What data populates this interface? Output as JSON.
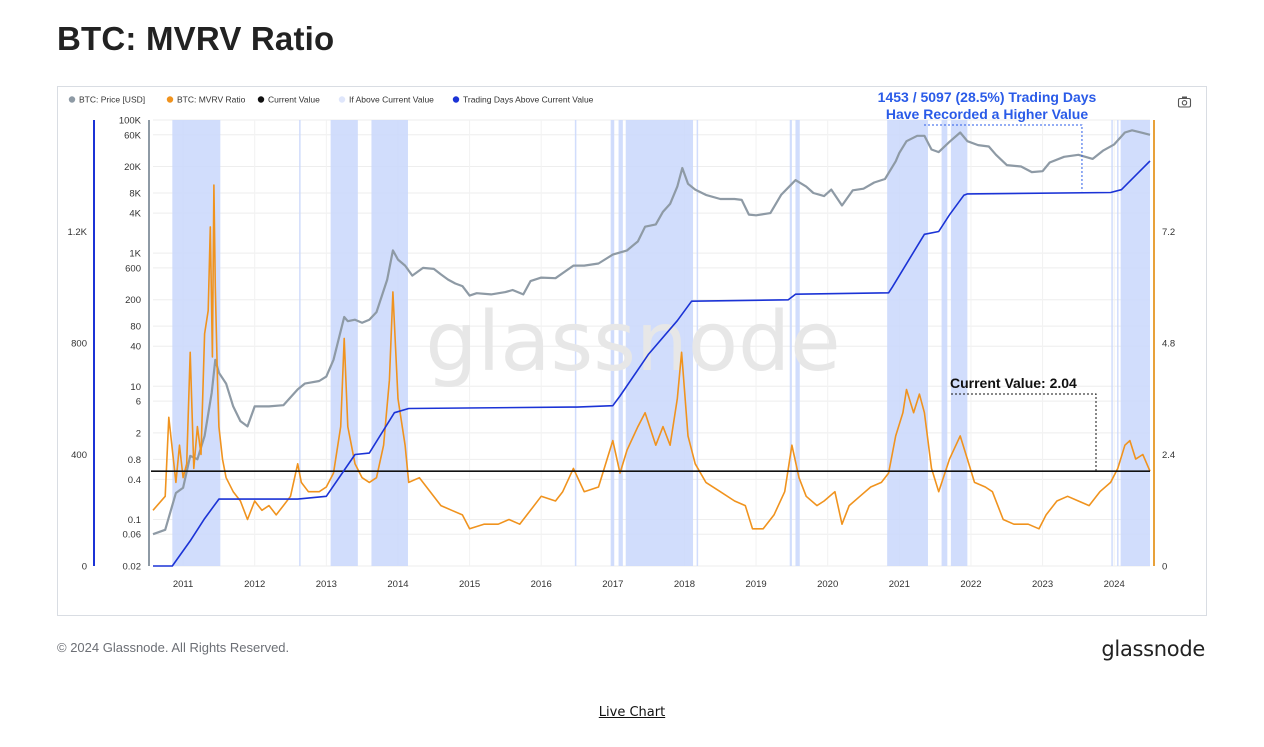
{
  "page": {
    "title": "BTC: MVRV Ratio",
    "copyright": "© 2024 Glassnode. All Rights Reserved.",
    "logo_text": "glassnode",
    "watermark": "glassnode",
    "live_chart_link": "Live Chart"
  },
  "colors": {
    "price": "#8e9aa5",
    "mvrv": "#f0931e",
    "current_value": "#111111",
    "above_fill": "#c9d7fb",
    "trading_days": "#1b33d6",
    "annotation_blue": "#2a5be8",
    "right_axis": "#e8a13a"
  },
  "icons": {
    "camera": "camera-icon"
  },
  "chart_data": {
    "type": "line",
    "legend": [
      {
        "label": "BTC: Price [USD]",
        "color": "#8e9aa5",
        "marker": "dot"
      },
      {
        "label": "BTC: MVRV Ratio",
        "color": "#f0931e",
        "marker": "dot"
      },
      {
        "label": "Current Value",
        "color": "#111111",
        "marker": "dot"
      },
      {
        "label": "If Above Current Value",
        "color": "#dfe6fb",
        "marker": "dot"
      },
      {
        "label": "Trading Days Above Current Value",
        "color": "#1b33d6",
        "marker": "dot"
      }
    ],
    "legend_position": "top-left",
    "annotation_days": {
      "line1": "1453 / 5097 (28.5%) Trading Days",
      "line2": "Have Recorded a Higher Value"
    },
    "annotation_current": "Current Value: 2.04",
    "x_ticks": [
      "2011",
      "2012",
      "2013",
      "2014",
      "2015",
      "2016",
      "2017",
      "2018",
      "2019",
      "2020",
      "2021",
      "2022",
      "2023",
      "2024"
    ],
    "x_range": [
      2010.58,
      2024.5
    ],
    "left_axis_ticks": [
      "0",
      "400",
      "800",
      "1.2K"
    ],
    "left_axis_range": [
      0,
      1600
    ],
    "price_axis_ticks": [
      "100K",
      "60K",
      "20K",
      "8K",
      "4K",
      "1K",
      "600",
      "200",
      "80",
      "40",
      "10",
      "6",
      "2",
      "0.8",
      "0.4",
      "0.1",
      "0.06",
      "0.02"
    ],
    "price_axis_scale": "log",
    "price_axis_range": [
      0.02,
      100000
    ],
    "right_axis_ticks": [
      "0",
      "2.4",
      "4.8",
      "7.2"
    ],
    "right_axis_range": [
      0,
      9.6
    ],
    "current_value": 2.04,
    "price_series": [
      [
        2010.58,
        0.06
      ],
      [
        2010.75,
        0.07
      ],
      [
        2010.9,
        0.25
      ],
      [
        2011.0,
        0.3
      ],
      [
        2011.1,
        0.9
      ],
      [
        2011.2,
        0.8
      ],
      [
        2011.3,
        1.8
      ],
      [
        2011.4,
        8
      ],
      [
        2011.45,
        25
      ],
      [
        2011.5,
        16
      ],
      [
        2011.6,
        11
      ],
      [
        2011.7,
        5
      ],
      [
        2011.8,
        3
      ],
      [
        2011.9,
        2.5
      ],
      [
        2012.0,
        5
      ],
      [
        2012.2,
        5
      ],
      [
        2012.4,
        5.2
      ],
      [
        2012.6,
        9
      ],
      [
        2012.7,
        11
      ],
      [
        2012.9,
        12
      ],
      [
        2013.0,
        14
      ],
      [
        2013.1,
        25
      ],
      [
        2013.25,
        110
      ],
      [
        2013.3,
        95
      ],
      [
        2013.4,
        100
      ],
      [
        2013.5,
        90
      ],
      [
        2013.6,
        100
      ],
      [
        2013.7,
        130
      ],
      [
        2013.85,
        400
      ],
      [
        2013.93,
        1100
      ],
      [
        2014.0,
        800
      ],
      [
        2014.1,
        650
      ],
      [
        2014.2,
        460
      ],
      [
        2014.35,
        600
      ],
      [
        2014.5,
        580
      ],
      [
        2014.6,
        480
      ],
      [
        2014.7,
        400
      ],
      [
        2014.8,
        350
      ],
      [
        2014.9,
        320
      ],
      [
        2015.0,
        230
      ],
      [
        2015.1,
        250
      ],
      [
        2015.3,
        240
      ],
      [
        2015.5,
        260
      ],
      [
        2015.6,
        280
      ],
      [
        2015.75,
        240
      ],
      [
        2015.85,
        380
      ],
      [
        2016.0,
        430
      ],
      [
        2016.2,
        420
      ],
      [
        2016.45,
        650
      ],
      [
        2016.6,
        650
      ],
      [
        2016.8,
        700
      ],
      [
        2017.0,
        950
      ],
      [
        2017.2,
        1100
      ],
      [
        2017.35,
        1500
      ],
      [
        2017.45,
        2500
      ],
      [
        2017.6,
        2700
      ],
      [
        2017.7,
        4200
      ],
      [
        2017.8,
        5500
      ],
      [
        2017.9,
        10000
      ],
      [
        2017.97,
        19000
      ],
      [
        2018.05,
        11000
      ],
      [
        2018.15,
        9000
      ],
      [
        2018.3,
        7500
      ],
      [
        2018.5,
        6500
      ],
      [
        2018.7,
        6500
      ],
      [
        2018.8,
        6300
      ],
      [
        2018.9,
        3800
      ],
      [
        2019.0,
        3700
      ],
      [
        2019.2,
        4000
      ],
      [
        2019.35,
        7500
      ],
      [
        2019.5,
        11000
      ],
      [
        2019.55,
        12500
      ],
      [
        2019.7,
        10000
      ],
      [
        2019.8,
        8000
      ],
      [
        2019.95,
        7200
      ],
      [
        2020.05,
        9000
      ],
      [
        2020.2,
        5200
      ],
      [
        2020.35,
        8800
      ],
      [
        2020.5,
        9300
      ],
      [
        2020.65,
        11500
      ],
      [
        2020.8,
        13000
      ],
      [
        2020.95,
        24000
      ],
      [
        2021.0,
        32000
      ],
      [
        2021.1,
        48000
      ],
      [
        2021.25,
        58000
      ],
      [
        2021.35,
        58000
      ],
      [
        2021.45,
        36000
      ],
      [
        2021.55,
        33000
      ],
      [
        2021.7,
        47000
      ],
      [
        2021.85,
        65000
      ],
      [
        2021.95,
        48000
      ],
      [
        2022.1,
        42000
      ],
      [
        2022.25,
        40000
      ],
      [
        2022.35,
        30000
      ],
      [
        2022.5,
        21000
      ],
      [
        2022.7,
        20000
      ],
      [
        2022.85,
        16500
      ],
      [
        2023.0,
        17000
      ],
      [
        2023.1,
        23000
      ],
      [
        2023.3,
        28000
      ],
      [
        2023.5,
        30000
      ],
      [
        2023.7,
        26000
      ],
      [
        2023.85,
        35000
      ],
      [
        2024.0,
        43000
      ],
      [
        2024.15,
        65000
      ],
      [
        2024.25,
        70000
      ],
      [
        2024.4,
        64000
      ],
      [
        2024.5,
        60000
      ]
    ],
    "mvrv_series": [
      [
        2010.58,
        1.2
      ],
      [
        2010.75,
        1.5
      ],
      [
        2010.8,
        3.2
      ],
      [
        2010.9,
        1.8
      ],
      [
        2010.95,
        2.6
      ],
      [
        2011.0,
        1.9
      ],
      [
        2011.05,
        2.2
      ],
      [
        2011.1,
        4.6
      ],
      [
        2011.15,
        2.1
      ],
      [
        2011.2,
        3.0
      ],
      [
        2011.25,
        2.4
      ],
      [
        2011.3,
        5.0
      ],
      [
        2011.35,
        5.5
      ],
      [
        2011.38,
        7.3
      ],
      [
        2011.41,
        4.5
      ],
      [
        2011.43,
        8.2
      ],
      [
        2011.45,
        6.0
      ],
      [
        2011.48,
        4.0
      ],
      [
        2011.5,
        3.0
      ],
      [
        2011.55,
        2.3
      ],
      [
        2011.6,
        1.9
      ],
      [
        2011.7,
        1.6
      ],
      [
        2011.8,
        1.4
      ],
      [
        2011.9,
        1.0
      ],
      [
        2012.0,
        1.4
      ],
      [
        2012.1,
        1.2
      ],
      [
        2012.2,
        1.3
      ],
      [
        2012.3,
        1.1
      ],
      [
        2012.4,
        1.3
      ],
      [
        2012.5,
        1.5
      ],
      [
        2012.6,
        2.2
      ],
      [
        2012.65,
        1.8
      ],
      [
        2012.75,
        1.6
      ],
      [
        2012.9,
        1.6
      ],
      [
        2013.0,
        1.7
      ],
      [
        2013.1,
        2.0
      ],
      [
        2013.2,
        3.0
      ],
      [
        2013.25,
        4.9
      ],
      [
        2013.3,
        3.0
      ],
      [
        2013.4,
        2.2
      ],
      [
        2013.5,
        1.9
      ],
      [
        2013.6,
        1.8
      ],
      [
        2013.7,
        1.9
      ],
      [
        2013.8,
        2.6
      ],
      [
        2013.88,
        4.0
      ],
      [
        2013.93,
        5.9
      ],
      [
        2014.0,
        3.6
      ],
      [
        2014.1,
        2.6
      ],
      [
        2014.15,
        1.8
      ],
      [
        2014.3,
        1.9
      ],
      [
        2014.45,
        1.6
      ],
      [
        2014.6,
        1.3
      ],
      [
        2014.75,
        1.2
      ],
      [
        2014.9,
        1.1
      ],
      [
        2015.0,
        0.8
      ],
      [
        2015.2,
        0.9
      ],
      [
        2015.4,
        0.9
      ],
      [
        2015.55,
        1.0
      ],
      [
        2015.7,
        0.9
      ],
      [
        2015.85,
        1.2
      ],
      [
        2016.0,
        1.5
      ],
      [
        2016.2,
        1.4
      ],
      [
        2016.3,
        1.6
      ],
      [
        2016.45,
        2.1
      ],
      [
        2016.6,
        1.6
      ],
      [
        2016.8,
        1.7
      ],
      [
        2017.0,
        2.7
      ],
      [
        2017.1,
        2.0
      ],
      [
        2017.2,
        2.5
      ],
      [
        2017.35,
        3.0
      ],
      [
        2017.45,
        3.3
      ],
      [
        2017.6,
        2.6
      ],
      [
        2017.7,
        3.0
      ],
      [
        2017.8,
        2.6
      ],
      [
        2017.9,
        3.6
      ],
      [
        2017.96,
        4.6
      ],
      [
        2018.05,
        2.8
      ],
      [
        2018.15,
        2.2
      ],
      [
        2018.3,
        1.8
      ],
      [
        2018.5,
        1.6
      ],
      [
        2018.7,
        1.4
      ],
      [
        2018.85,
        1.3
      ],
      [
        2018.95,
        0.8
      ],
      [
        2019.1,
        0.8
      ],
      [
        2019.25,
        1.1
      ],
      [
        2019.4,
        1.6
      ],
      [
        2019.5,
        2.6
      ],
      [
        2019.6,
        1.9
      ],
      [
        2019.7,
        1.5
      ],
      [
        2019.85,
        1.3
      ],
      [
        2019.95,
        1.4
      ],
      [
        2020.1,
        1.6
      ],
      [
        2020.2,
        0.9
      ],
      [
        2020.3,
        1.3
      ],
      [
        2020.45,
        1.5
      ],
      [
        2020.6,
        1.7
      ],
      [
        2020.75,
        1.8
      ],
      [
        2020.85,
        2.0
      ],
      [
        2020.95,
        2.8
      ],
      [
        2021.05,
        3.3
      ],
      [
        2021.1,
        3.8
      ],
      [
        2021.2,
        3.3
      ],
      [
        2021.28,
        3.7
      ],
      [
        2021.35,
        3.3
      ],
      [
        2021.45,
        2.1
      ],
      [
        2021.55,
        1.6
      ],
      [
        2021.7,
        2.3
      ],
      [
        2021.85,
        2.8
      ],
      [
        2021.95,
        2.3
      ],
      [
        2022.05,
        1.8
      ],
      [
        2022.2,
        1.7
      ],
      [
        2022.3,
        1.6
      ],
      [
        2022.45,
        1.0
      ],
      [
        2022.6,
        0.9
      ],
      [
        2022.8,
        0.9
      ],
      [
        2022.95,
        0.8
      ],
      [
        2023.05,
        1.1
      ],
      [
        2023.2,
        1.4
      ],
      [
        2023.35,
        1.5
      ],
      [
        2023.5,
        1.4
      ],
      [
        2023.65,
        1.3
      ],
      [
        2023.8,
        1.6
      ],
      [
        2023.95,
        1.8
      ],
      [
        2024.05,
        2.1
      ],
      [
        2024.15,
        2.6
      ],
      [
        2024.22,
        2.7
      ],
      [
        2024.3,
        2.3
      ],
      [
        2024.4,
        2.4
      ],
      [
        2024.5,
        2.04
      ]
    ],
    "trading_days_series": [
      [
        2010.58,
        0
      ],
      [
        2010.85,
        0
      ],
      [
        2011.1,
        90
      ],
      [
        2011.3,
        170
      ],
      [
        2011.5,
        240
      ],
      [
        2012.6,
        240
      ],
      [
        2013.0,
        250
      ],
      [
        2013.4,
        400
      ],
      [
        2013.6,
        405
      ],
      [
        2013.95,
        550
      ],
      [
        2014.15,
        565
      ],
      [
        2016.4,
        570
      ],
      [
        2016.5,
        570
      ],
      [
        2017.0,
        575
      ],
      [
        2017.1,
        610
      ],
      [
        2017.5,
        760
      ],
      [
        2017.9,
        880
      ],
      [
        2018.1,
        950
      ],
      [
        2019.45,
        955
      ],
      [
        2019.55,
        975
      ],
      [
        2020.85,
        980
      ],
      [
        2020.9,
        1000
      ],
      [
        2021.35,
        1190
      ],
      [
        2021.55,
        1200
      ],
      [
        2021.7,
        1260
      ],
      [
        2021.9,
        1330
      ],
      [
        2021.95,
        1335
      ],
      [
        2023.95,
        1340
      ],
      [
        2024.1,
        1350
      ],
      [
        2024.5,
        1453
      ]
    ],
    "above_periods": [
      [
        2010.85,
        2011.52
      ],
      [
        2012.62,
        2012.64
      ],
      [
        2013.06,
        2013.44
      ],
      [
        2013.63,
        2014.14
      ],
      [
        2016.47,
        2016.49
      ],
      [
        2016.97,
        2017.02
      ],
      [
        2017.08,
        2017.14
      ],
      [
        2017.18,
        2018.12
      ],
      [
        2018.17,
        2018.19
      ],
      [
        2019.47,
        2019.5
      ],
      [
        2019.55,
        2019.61
      ],
      [
        2020.83,
        2021.4
      ],
      [
        2021.59,
        2021.67
      ],
      [
        2021.72,
        2021.95
      ],
      [
        2023.96,
        2023.97
      ],
      [
        2024.04,
        2024.05
      ],
      [
        2024.09,
        2024.5
      ]
    ]
  }
}
